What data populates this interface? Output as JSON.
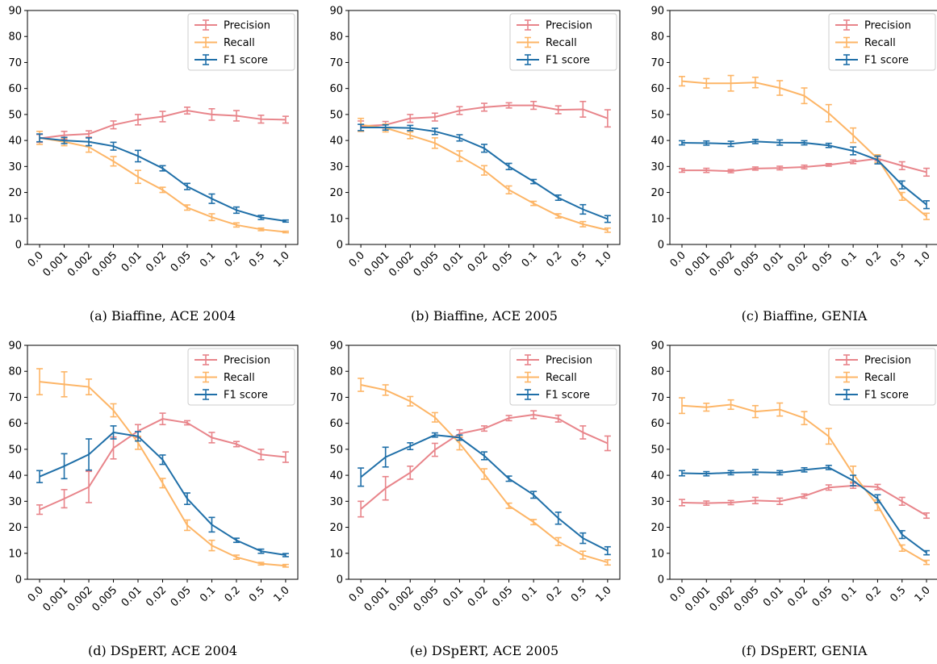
{
  "legend": [
    "Precision",
    "Recall",
    "F1 score"
  ],
  "colors": {
    "Precision": "#e8848a",
    "Recall": "#fdb566",
    "F1 score": "#1f6fa8"
  },
  "chart_data": [
    {
      "type": "line",
      "caption": "(a) Biaffine, ACE 2004",
      "categories": [
        "0.0",
        "0.001",
        "0.002",
        "0.005",
        "0.01",
        "0.02",
        "0.05",
        "0.1",
        "0.2",
        "0.5",
        "1.0"
      ],
      "ylim": [
        0,
        90
      ],
      "yticks": [
        0,
        10,
        20,
        30,
        40,
        50,
        60,
        70,
        80,
        90
      ],
      "grid": false,
      "legend_position": "top-right",
      "series": [
        {
          "name": "Precision",
          "values": [
            40.8,
            42,
            42.5,
            46,
            48,
            49.2,
            51.5,
            50,
            49.5,
            48.2,
            48
          ],
          "errors": [
            1.5,
            1.5,
            1.2,
            1.5,
            2,
            2,
            1.3,
            2.2,
            2,
            1.5,
            1.3
          ]
        },
        {
          "name": "Recall",
          "values": [
            41,
            39.5,
            37.5,
            32,
            26,
            21,
            14.2,
            10.5,
            7.5,
            5.8,
            4.8
          ],
          "errors": [
            2.5,
            1.5,
            2,
            1.8,
            2.5,
            1,
            1,
            1.3,
            0.8,
            0.5,
            0.3
          ]
        },
        {
          "name": "F1 score",
          "values": [
            41,
            40,
            39.5,
            37.8,
            34,
            29.3,
            22.3,
            17.6,
            13.2,
            10.4,
            9
          ]
        },
        {
          "name": "F1 score",
          "values": [
            41,
            40,
            39.5,
            37.8,
            34,
            29.3,
            22.3,
            17.6,
            13.2,
            10.4,
            9
          ],
          "errors": [
            1.5,
            1.2,
            1.5,
            1.5,
            2.2,
            1,
            1.2,
            1.8,
            1.2,
            0.8,
            0.4
          ]
        }
      ]
    },
    {
      "type": "line",
      "caption": "(b) Biaffine, ACE 2005",
      "categories": [
        "0.0",
        "0.001",
        "0.002",
        "0.005",
        "0.01",
        "0.02",
        "0.05",
        "0.1",
        "0.2",
        "0.5",
        "1.0"
      ],
      "ylim": [
        0,
        90
      ],
      "yticks": [
        0,
        10,
        20,
        30,
        40,
        50,
        60,
        70,
        80,
        90
      ],
      "grid": false,
      "legend_position": "top-right",
      "series": [
        {
          "name": "Precision",
          "values": [
            45.5,
            46,
            48.5,
            49,
            51.5,
            52.8,
            53.5,
            53.5,
            51.8,
            52,
            48.5
          ],
          "errors": [
            2,
            1.3,
            1.5,
            1.5,
            1.5,
            1.5,
            1,
            1.5,
            1.5,
            3,
            3.3
          ]
        },
        {
          "name": "Recall",
          "values": [
            46,
            44.8,
            42,
            39,
            34,
            28.5,
            21,
            15.8,
            11,
            7.8,
            5.5
          ],
          "errors": [
            2.5,
            1.5,
            1.3,
            2,
            2,
            1.8,
            1.5,
            0.8,
            0.8,
            1,
            0.8
          ]
        },
        {
          "name": "F1 score",
          "values": [
            45,
            45,
            44.8,
            43.5,
            41,
            37,
            30,
            24.2,
            18,
            13.5,
            9.8
          ],
          "errors": [
            1.2,
            1,
            1,
            1.2,
            1.2,
            1.5,
            1.2,
            0.8,
            1,
            1.8,
            1.3
          ]
        }
      ]
    },
    {
      "type": "line",
      "caption": "(c) Biaffine, GENIA",
      "categories": [
        "0.0",
        "0.001",
        "0.002",
        "0.005",
        "0.01",
        "0.02",
        "0.05",
        "0.1",
        "0.2",
        "0.5",
        "1.0"
      ],
      "ylim": [
        0,
        90
      ],
      "yticks": [
        0,
        10,
        20,
        30,
        40,
        50,
        60,
        70,
        80,
        90
      ],
      "grid": false,
      "legend_position": "top-right",
      "series": [
        {
          "name": "Precision",
          "values": [
            28.5,
            28.5,
            28.2,
            29.2,
            29.4,
            29.8,
            30.6,
            31.8,
            33,
            30.3,
            27.8
          ],
          "errors": [
            0.7,
            0.8,
            0.6,
            0.6,
            0.7,
            0.7,
            0.5,
            0.7,
            0.8,
            1.5,
            1.5
          ]
        },
        {
          "name": "Recall",
          "values": [
            62.8,
            62,
            62,
            62.3,
            60.2,
            57.2,
            50.5,
            42,
            33,
            18.5,
            10.8
          ],
          "errors": [
            1.8,
            1.8,
            3,
            2,
            2.8,
            3,
            3.3,
            2.8,
            1.5,
            1.5,
            1.2
          ]
        },
        {
          "name": "F1 score",
          "values": [
            39.1,
            39,
            38.7,
            39.6,
            39.2,
            39.1,
            38.1,
            36,
            32.5,
            22.9,
            15.3
          ],
          "errors": [
            0.8,
            0.8,
            1,
            0.8,
            1,
            0.8,
            0.8,
            1.5,
            1.5,
            1.5,
            1.5
          ]
        }
      ]
    },
    {
      "type": "line",
      "caption": "(d) DSpERT, ACE 2004",
      "categories": [
        "0.0",
        "0.001",
        "0.002",
        "0.005",
        "0.01",
        "0.02",
        "0.05",
        "0.1",
        "0.2",
        "0.5",
        "1.0"
      ],
      "ylim": [
        0,
        90
      ],
      "yticks": [
        0,
        10,
        20,
        30,
        40,
        50,
        60,
        70,
        80,
        90
      ],
      "grid": false,
      "legend_position": "top-right",
      "series": [
        {
          "name": "Precision",
          "values": [
            26.8,
            31,
            35.5,
            50.5,
            57,
            61.7,
            60.2,
            54.5,
            52,
            48,
            47
          ],
          "errors": [
            1.8,
            3.5,
            6,
            4.2,
            2.5,
            2.2,
            0.8,
            2,
            1,
            2,
            2
          ]
        },
        {
          "name": "Recall",
          "values": [
            76,
            75,
            74,
            65,
            52.5,
            37,
            20.8,
            13,
            8.5,
            6,
            5.2
          ],
          "errors": [
            5,
            4.8,
            3,
            2.5,
            2.5,
            1.8,
            2,
            2,
            0.8,
            0.5,
            0.5
          ]
        },
        {
          "name": "F1 score",
          "values": [
            39.5,
            43.5,
            48,
            56.5,
            55,
            46,
            31,
            21,
            15,
            10.8,
            9.3
          ],
          "errors": [
            2.3,
            4.8,
            6,
            2.5,
            1.8,
            1.8,
            2.2,
            2.8,
            0.8,
            0.8,
            0.6
          ]
        }
      ]
    },
    {
      "type": "line",
      "caption": "(e) DSpERT, ACE 2005",
      "categories": [
        "0.0",
        "0.001",
        "0.002",
        "0.005",
        "0.01",
        "0.02",
        "0.05",
        "0.1",
        "0.2",
        "0.5",
        "1.0"
      ],
      "ylim": [
        0,
        90
      ],
      "yticks": [
        0,
        10,
        20,
        30,
        40,
        50,
        60,
        70,
        80,
        90
      ],
      "grid": false,
      "legend_position": "top-right",
      "series": [
        {
          "name": "Precision",
          "values": [
            27,
            35,
            41,
            49.8,
            56,
            58,
            62,
            63.3,
            61.8,
            56.5,
            52.3
          ],
          "errors": [
            3,
            4.5,
            2.5,
            2.5,
            1.5,
            1,
            1,
            1.5,
            1.3,
            2.5,
            2.8
          ]
        },
        {
          "name": "Recall",
          "values": [
            74.8,
            72.8,
            68.5,
            62.3,
            52.3,
            40.5,
            28.3,
            22,
            14.5,
            9.3,
            6.5
          ],
          "errors": [
            2.5,
            2,
            1.8,
            1.8,
            2.5,
            2,
            1,
            1,
            1.5,
            1.5,
            1
          ]
        },
        {
          "name": "F1 score",
          "values": [
            39.3,
            47,
            51.2,
            55.5,
            54.5,
            47.5,
            38.7,
            32.5,
            23.5,
            15.8,
            11
          ],
          "errors": [
            3.5,
            3.8,
            1.3,
            0.8,
            1,
            1.5,
            1,
            1.3,
            2.3,
            2,
            1.5
          ]
        }
      ]
    },
    {
      "type": "line",
      "caption": "(f) DSpERT, GENIA",
      "categories": [
        "0.0",
        "0.001",
        "0.002",
        "0.005",
        "0.01",
        "0.02",
        "0.05",
        "0.1",
        "0.2",
        "0.5",
        "1.0"
      ],
      "ylim": [
        0,
        90
      ],
      "yticks": [
        0,
        10,
        20,
        30,
        40,
        50,
        60,
        70,
        80,
        90
      ],
      "grid": false,
      "legend_position": "top-right",
      "series": [
        {
          "name": "Precision",
          "values": [
            29.5,
            29.3,
            29.5,
            30.3,
            30,
            32,
            35.3,
            36,
            35.5,
            30,
            24.5
          ],
          "errors": [
            1.2,
            0.8,
            0.8,
            1.2,
            1.2,
            0.8,
            1,
            1,
            1,
            1.5,
            1
          ]
        },
        {
          "name": "Recall",
          "values": [
            66.8,
            66.2,
            67.2,
            64.5,
            65.3,
            62,
            55,
            40.5,
            28.5,
            12,
            6.5
          ],
          "errors": [
            3,
            1.5,
            1.8,
            2.3,
            2.5,
            2.5,
            3,
            3,
            2,
            1.2,
            0.8
          ]
        },
        {
          "name": "F1 score",
          "values": [
            40.8,
            40.6,
            41,
            41.2,
            41,
            42.1,
            43,
            38,
            31,
            17.2,
            10.2
          ],
          "errors": [
            1,
            0.8,
            0.8,
            1,
            0.8,
            0.8,
            0.8,
            2,
            1.5,
            1.5,
            0.8
          ]
        }
      ]
    }
  ]
}
